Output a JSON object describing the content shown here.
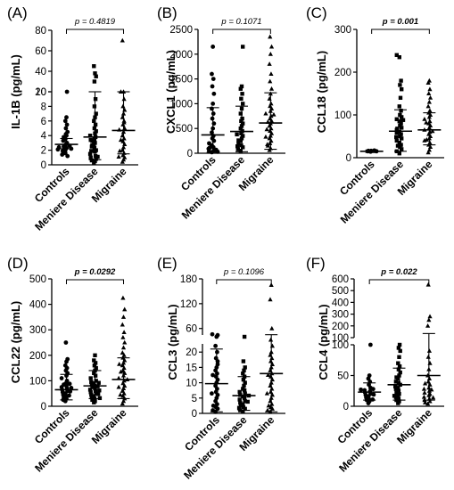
{
  "chart_data": [
    {
      "panel": "(A)",
      "type": "scatter",
      "ylabel": "IL-1B (pg/mL)",
      "categories": [
        "Controls",
        "Meniere Disease",
        "Migraine"
      ],
      "p_value": "p = 0.4819",
      "p_bold": false,
      "p_italic": true,
      "axis_break": [
        10,
        20
      ],
      "yticks": [
        "0",
        "2",
        "4",
        "6",
        "8",
        "10",
        "20",
        "40",
        "60",
        "80"
      ],
      "means": [
        2.8,
        3.8,
        4.7
      ],
      "sd": [
        [
          2.2,
          3.6
        ],
        [
          0.7,
          13.0
        ],
        [
          1.5,
          14.5
        ]
      ],
      "series": [
        {
          "marker": "circle",
          "values": [
            2.0,
            2.3,
            2.5,
            2.8,
            3.0,
            1.6,
            1.9,
            2.2,
            2.6,
            3.3,
            3.5,
            4.0,
            4.5,
            5.0,
            5.5,
            6.0,
            6.5,
            1.2,
            1.4,
            1.8,
            2.1,
            2.4,
            3.8,
            4.2,
            10
          ]
        },
        {
          "marker": "square",
          "values": [
            0.3,
            0.5,
            0.8,
            1.0,
            1.2,
            1.5,
            1.8,
            2.0,
            2.3,
            2.5,
            2.8,
            3.0,
            3.3,
            3.5,
            3.8,
            4.0,
            4.3,
            4.6,
            5.0,
            5.5,
            6.0,
            6.5,
            7.0,
            8.0,
            9.0,
            1.1,
            1.9,
            2.7,
            3.4,
            0.6,
            45,
            38,
            35,
            30
          ]
        },
        {
          "marker": "triangle",
          "values": [
            0.4,
            0.7,
            1.0,
            1.3,
            1.6,
            2.0,
            2.4,
            2.8,
            3.2,
            3.6,
            4.0,
            4.5,
            5.0,
            5.5,
            6.0,
            6.5,
            7.0,
            7.5,
            8.0,
            9.0,
            1.1,
            1.9,
            3.4,
            4.8,
            5.8,
            70,
            18,
            13
          ]
        }
      ]
    },
    {
      "panel": "(B)",
      "type": "scatter",
      "ylabel": "CXCL1 (pg/mL)",
      "categories": [
        "Controls",
        "Meniere Disease",
        "Migraine"
      ],
      "p_value": "p = 0.1071",
      "p_bold": false,
      "p_italic": true,
      "axis_break": null,
      "ylim": [
        0,
        2500
      ],
      "yticks": [
        "0",
        "500",
        "1000",
        "1500",
        "2000",
        "2500"
      ],
      "means": [
        370,
        440,
        610
      ],
      "sd": [
        [
          20,
          920
        ],
        [
          30,
          950
        ],
        [
          80,
          1220
        ]
      ],
      "series": [
        {
          "marker": "circle",
          "values": [
            20,
            40,
            60,
            90,
            120,
            160,
            200,
            250,
            300,
            350,
            420,
            500,
            600,
            700,
            800,
            900,
            1000,
            1200,
            1350,
            1500,
            1600,
            2150,
            30,
            70,
            110
          ]
        },
        {
          "marker": "square",
          "values": [
            50,
            80,
            120,
            160,
            200,
            250,
            300,
            350,
            400,
            450,
            500,
            550,
            600,
            650,
            700,
            800,
            900,
            1000,
            1100,
            1200,
            1300,
            1350,
            2150,
            140,
            260,
            380
          ]
        },
        {
          "marker": "triangle",
          "values": [
            60,
            100,
            150,
            200,
            250,
            300,
            350,
            400,
            450,
            500,
            550,
            600,
            650,
            700,
            750,
            800,
            850,
            900,
            950,
            1000,
            1100,
            1200,
            1300,
            1450,
            1600,
            1800,
            2000,
            2150,
            2350,
            180,
            330,
            480,
            630,
            780
          ]
        }
      ]
    },
    {
      "panel": "(C)",
      "type": "scatter",
      "ylabel": "CCL18 (pg/mL)",
      "categories": [
        "Controls",
        "Meniere Disease",
        "Migraine"
      ],
      "p_value": "p = 0.001",
      "p_bold": true,
      "p_italic": true,
      "axis_break": null,
      "ylim": [
        0,
        300
      ],
      "yticks": [
        "0",
        "100",
        "200",
        "300"
      ],
      "means": [
        15,
        62,
        65
      ],
      "sd": [
        [
          12,
          18
        ],
        [
          15,
          112
        ],
        [
          30,
          105
        ]
      ],
      "series": [
        {
          "marker": "circle",
          "values": [
            14,
            15,
            15,
            16,
            16,
            17
          ]
        },
        {
          "marker": "square",
          "values": [
            10,
            15,
            20,
            25,
            30,
            35,
            40,
            45,
            50,
            55,
            60,
            65,
            70,
            75,
            80,
            85,
            90,
            95,
            100,
            110,
            120,
            140,
            160,
            170,
            180,
            235,
            240,
            28,
            48,
            68,
            88,
            58
          ]
        },
        {
          "marker": "triangle",
          "values": [
            12,
            18,
            25,
            30,
            35,
            40,
            45,
            50,
            55,
            60,
            65,
            70,
            75,
            80,
            85,
            90,
            95,
            100,
            105,
            110,
            120,
            130,
            140,
            150,
            160,
            175,
            180,
            42,
            62,
            82
          ]
        }
      ]
    },
    {
      "panel": "(D)",
      "type": "scatter",
      "ylabel": "CCL22 (pg/mL)",
      "categories": [
        "Controls",
        "Meniere Disease",
        "Migraine"
      ],
      "p_value": "p = 0.0292",
      "p_bold": true,
      "p_italic": true,
      "axis_break": null,
      "ylim": [
        0,
        500
      ],
      "yticks": [
        "0",
        "100",
        "200",
        "300",
        "400",
        "500"
      ],
      "means": [
        65,
        80,
        105
      ],
      "sd": [
        [
          25,
          125
        ],
        [
          30,
          140
        ],
        [
          30,
          190
        ]
      ],
      "series": [
        {
          "marker": "circle",
          "values": [
            20,
            30,
            35,
            40,
            45,
            50,
            55,
            60,
            65,
            70,
            75,
            80,
            85,
            90,
            100,
            110,
            120,
            130,
            140,
            150,
            160,
            175,
            185,
            250,
            25,
            42,
            58,
            72,
            88
          ]
        },
        {
          "marker": "square",
          "values": [
            15,
            20,
            25,
            30,
            35,
            40,
            45,
            50,
            55,
            60,
            65,
            70,
            75,
            80,
            85,
            90,
            95,
            100,
            110,
            120,
            130,
            140,
            150,
            160,
            170,
            180,
            200,
            32,
            48,
            62,
            78,
            92
          ]
        },
        {
          "marker": "triangle",
          "values": [
            10,
            20,
            30,
            40,
            50,
            60,
            70,
            80,
            90,
            100,
            110,
            120,
            130,
            140,
            150,
            160,
            170,
            180,
            190,
            200,
            210,
            230,
            250,
            270,
            290,
            320,
            350,
            380,
            425,
            45,
            75,
            105,
            135,
            165
          ]
        }
      ]
    },
    {
      "panel": "(E)",
      "type": "scatter",
      "ylabel": "CCL3 (pg/mL)",
      "categories": [
        "Controls",
        "Meniere Disease",
        "Migraine"
      ],
      "p_value": "p = 0.1096",
      "p_bold": false,
      "p_italic": true,
      "axis_break": [
        25,
        40
      ],
      "yticks": [
        "0",
        "5",
        "10",
        "15",
        "20",
        "60",
        "120",
        "180"
      ],
      "means": [
        9.7,
        5.8,
        13
      ],
      "sd": [
        [
          0.5,
          21
        ],
        [
          1.0,
          12
        ],
        [
          0.5,
          45
        ]
      ],
      "series": [
        {
          "marker": "circle",
          "values": [
            0.5,
            1.0,
            1.5,
            2.0,
            3.0,
            4.0,
            5.0,
            6.0,
            7.0,
            8.0,
            9.0,
            10,
            11,
            12,
            13,
            14,
            15,
            16,
            18,
            20,
            22,
            40,
            44,
            46,
            2.5,
            6.5,
            12.5,
            17
          ]
        },
        {
          "marker": "square",
          "values": [
            0.5,
            1.0,
            1.5,
            2.0,
            2.5,
            3.0,
            3.5,
            4.0,
            4.5,
            5.0,
            5.5,
            6.0,
            6.5,
            7.0,
            7.5,
            8.0,
            9.0,
            10,
            11,
            12,
            13,
            14,
            15,
            17,
            40,
            1.8,
            3.8,
            5.8
          ]
        },
        {
          "marker": "triangle",
          "values": [
            0.5,
            1.0,
            1.5,
            2.0,
            3.0,
            4.0,
            5.0,
            6.0,
            7.0,
            8.0,
            9.0,
            10,
            11,
            12,
            13,
            14,
            15,
            16,
            17,
            18,
            19,
            20,
            22,
            24,
            60,
            130,
            165,
            2.5,
            6.5,
            12.5
          ]
        }
      ]
    },
    {
      "panel": "(F)",
      "type": "scatter",
      "ylabel": "CCL4 (pg/mL)",
      "categories": [
        "Controls",
        "Meniere Disease",
        "Migraine"
      ],
      "p_value": "p = 0.022",
      "p_bold": true,
      "p_italic": true,
      "axis_break": [
        100,
        100
      ],
      "yticks": [
        "0",
        "50",
        "100",
        "100",
        "200",
        "300",
        "400",
        "500",
        "600"
      ],
      "means": [
        23,
        35,
        50
      ],
      "sd": [
        [
          10,
          38
        ],
        [
          10,
          62
        ],
        [
          10,
          135
        ]
      ],
      "series": [
        {
          "marker": "circle",
          "values": [
            5,
            8,
            10,
            12,
            14,
            16,
            18,
            20,
            22,
            24,
            26,
            28,
            30,
            35,
            40,
            45,
            50,
            100,
            11,
            19,
            27
          ]
        },
        {
          "marker": "square",
          "values": [
            5,
            8,
            10,
            12,
            15,
            18,
            20,
            22,
            25,
            28,
            30,
            32,
            35,
            38,
            40,
            45,
            50,
            55,
            60,
            65,
            70,
            80,
            90,
            95,
            100,
            17,
            33,
            47
          ]
        },
        {
          "marker": "triangle",
          "values": [
            4,
            6,
            8,
            10,
            12,
            15,
            18,
            20,
            22,
            25,
            28,
            30,
            35,
            40,
            45,
            50,
            60,
            70,
            80,
            90,
            200,
            250,
            280,
            550,
            14,
            27,
            37
          ]
        }
      ]
    }
  ]
}
